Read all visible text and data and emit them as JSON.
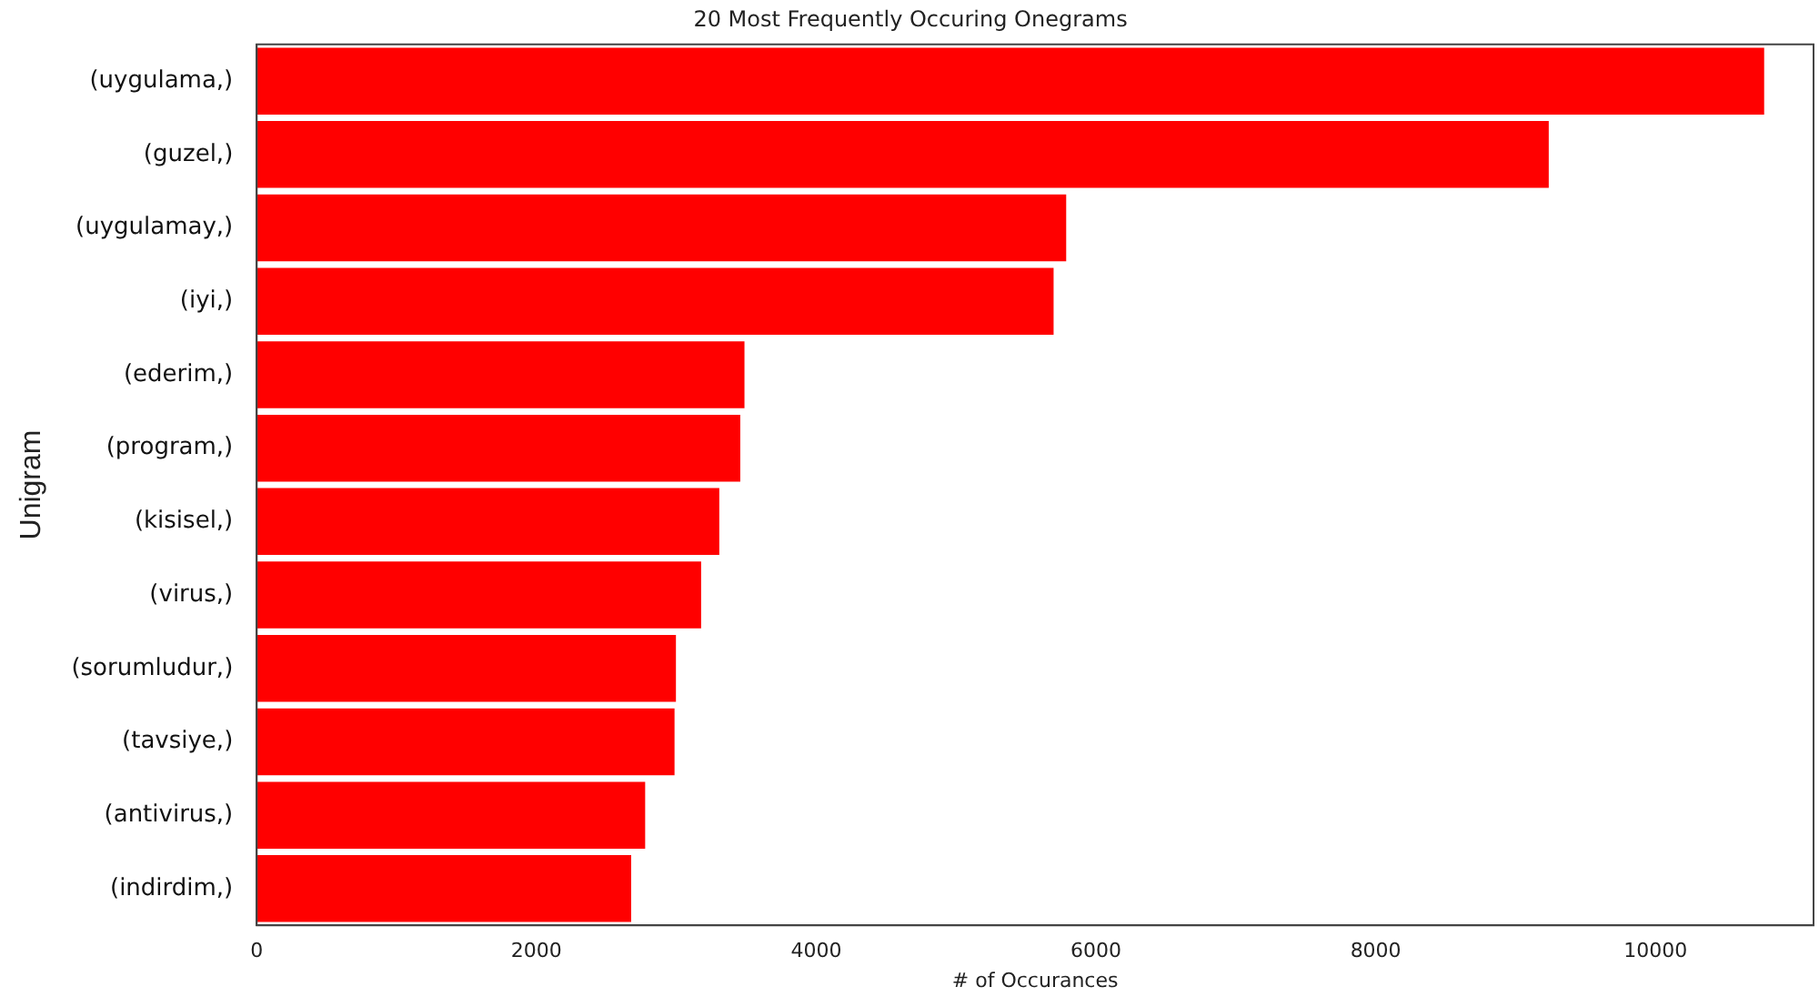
{
  "chart_data": {
    "type": "bar",
    "orientation": "horizontal",
    "title": "20 Most Frequently Occuring Onegrams",
    "xlabel": "# of Occurances",
    "ylabel": "Unigram",
    "categories": [
      "(uygulama,)",
      "(guzel,)",
      "(uygulamay,)",
      "(iyi,)",
      "(ederim,)",
      "(program,)",
      "(kisisel,)",
      "(virus,)",
      "(sorumludur,)",
      "(tavsiye,)",
      "(antivirus,)",
      "(indirdim,)"
    ],
    "values": [
      10790,
      9250,
      5800,
      5710,
      3500,
      3470,
      3320,
      3190,
      3010,
      3000,
      2790,
      2690
    ],
    "color": "#ff0000",
    "xlim": [
      0,
      11130
    ],
    "xticks": [
      0,
      2000,
      4000,
      6000,
      8000,
      10000
    ],
    "grid": false,
    "legend": false
  }
}
